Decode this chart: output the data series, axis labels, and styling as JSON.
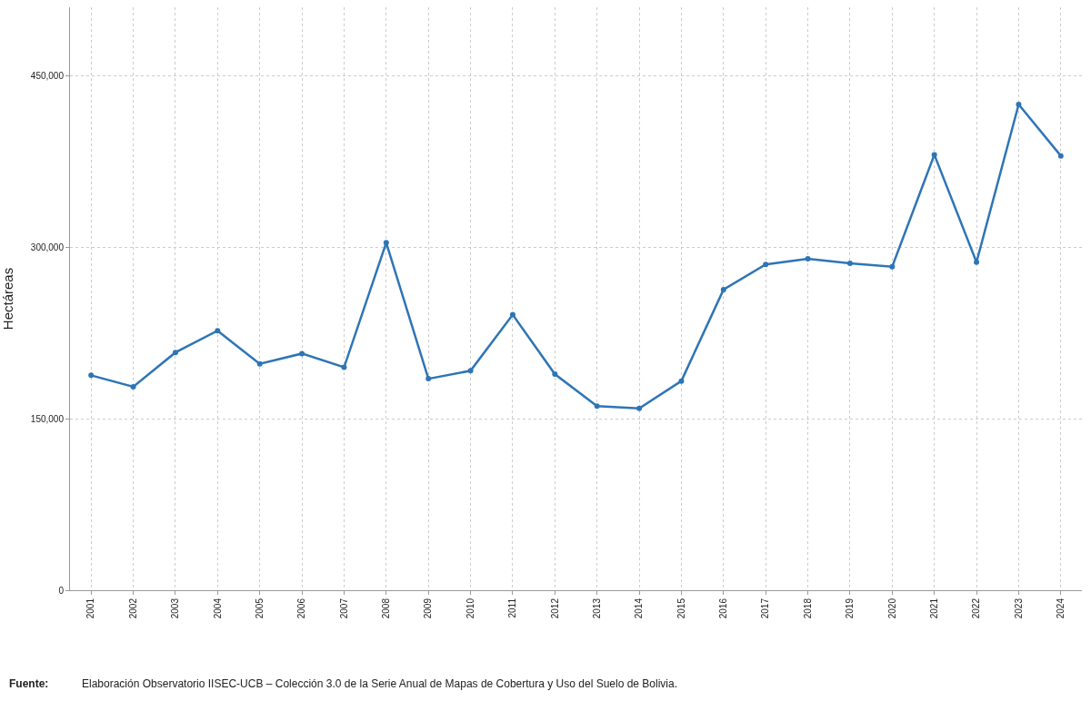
{
  "chart_data": {
    "type": "line",
    "ylabel": "Hectáreas",
    "categories": [
      "2001",
      "2002",
      "2003",
      "2004",
      "2005",
      "2006",
      "2007",
      "2008",
      "2009",
      "2010",
      "2011",
      "2012",
      "2013",
      "2014",
      "2015",
      "2016",
      "2017",
      "2018",
      "2019",
      "2020",
      "2021",
      "2022",
      "2023",
      "2024"
    ],
    "series": [
      {
        "color": "#2e75b6",
        "values": [
          188000,
          178000,
          208000,
          227000,
          198000,
          207000,
          195000,
          304000,
          185000,
          192000,
          241000,
          189000,
          161000,
          159000,
          183000,
          263000,
          285000,
          290000,
          286000,
          283000,
          381000,
          287000,
          425000,
          380000
        ]
      }
    ],
    "ylim": [
      0,
      510000
    ],
    "yticks": [
      0,
      {
        "value": 150000,
        "label": "150,000"
      },
      {
        "value": 300000,
        "label": "300,000"
      },
      {
        "value": 450000,
        "label": "450,000"
      }
    ],
    "grid": true,
    "marker": "circle",
    "line_style": "solid",
    "annotations": [
      "Fuente:",
      "Elaboración Observatorio IISEC-UCB – Colección 3.0 de la Serie Anual de Mapas de Cobertura y Uso del Suelo de Bolivia."
    ]
  }
}
